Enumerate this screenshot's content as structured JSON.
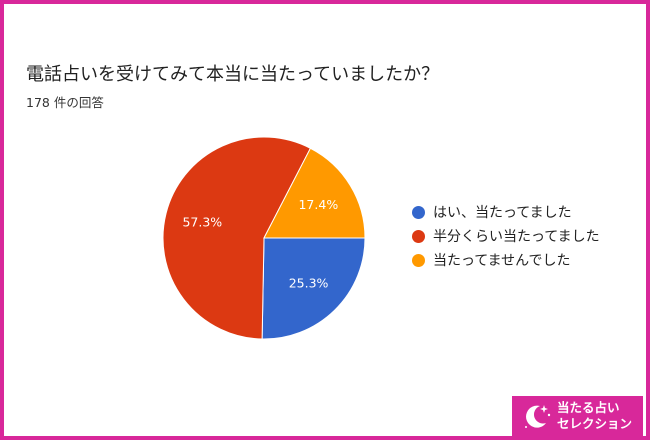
{
  "chart_data": {
    "type": "pie",
    "title": "電話占いを受けてみて本当に当たっていましたか？",
    "subtitle": "178 件の回答",
    "categories": [
      "はい、当たってました",
      "半分くらい当たってました",
      "当たってませんでした"
    ],
    "values": [
      25.3,
      57.3,
      17.4
    ],
    "data_labels": [
      "25.3%",
      "57.3%",
      "17.4%"
    ],
    "colors": [
      "#3366cc",
      "#dc3912",
      "#ff9900"
    ],
    "legend_position": "right"
  },
  "brand": {
    "line1": "当たる占い",
    "line2": "セレクション",
    "logo_icon": "crescent-moon-stars-icon",
    "color": "#d8289a"
  }
}
